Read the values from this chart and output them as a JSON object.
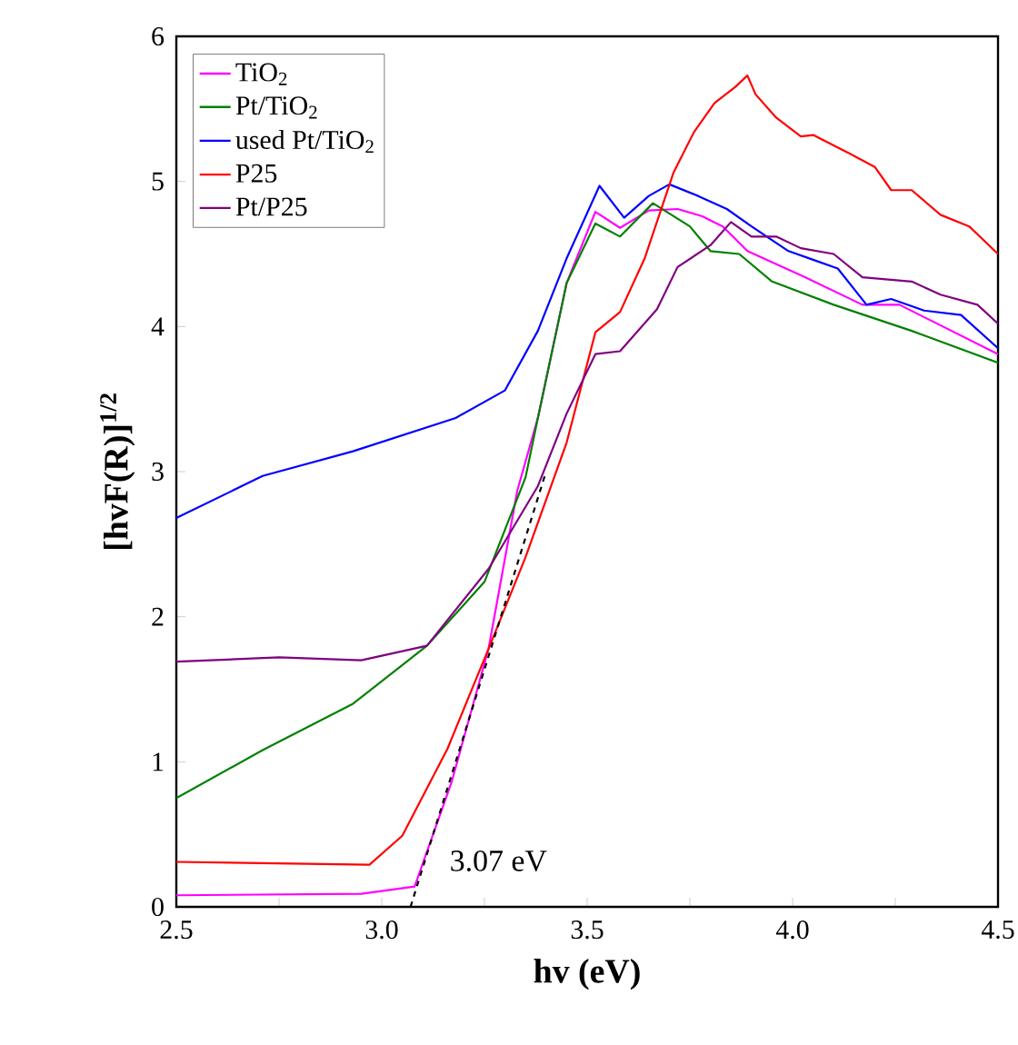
{
  "chart_data": {
    "type": "line",
    "xlabel": "hv (eV)",
    "ylabel": "[hvF(R)]$^{1/2}$",
    "xlim": [
      2.5,
      4.5
    ],
    "ylim": [
      0,
      6
    ],
    "xticks": [
      {
        "value": 2.5,
        "label": "2.5"
      },
      {
        "value": 2.75,
        "label": null
      },
      {
        "value": 3.0,
        "label": "3.0"
      },
      {
        "value": 3.25,
        "label": null
      },
      {
        "value": 3.5,
        "label": "3.5"
      },
      {
        "value": 3.75,
        "label": null
      },
      {
        "value": 4.0,
        "label": "4.0"
      },
      {
        "value": 4.25,
        "label": null
      },
      {
        "value": 4.5,
        "label": "4.5"
      }
    ],
    "yticks": [
      0,
      1,
      2,
      3,
      4,
      5,
      6
    ],
    "grid": false,
    "legend": "top left",
    "marker": "none",
    "annotations": [
      {
        "text": "3.07 eV",
        "x": 3.07,
        "y": 0
      }
    ],
    "series": [
      {
        "name": "TiO$_{2}$",
        "color": "#ff00ff",
        "x": [
          2.5,
          2.95,
          3.08,
          3.17,
          3.26,
          3.33,
          3.38,
          3.45,
          3.52,
          3.58,
          3.65,
          3.72,
          3.78,
          3.83,
          3.89,
          4.03,
          4.17,
          4.26,
          4.5
        ],
        "values": [
          0.08,
          0.09,
          0.14,
          0.86,
          1.78,
          2.87,
          3.37,
          4.3,
          4.79,
          4.68,
          4.8,
          4.81,
          4.76,
          4.69,
          4.52,
          4.34,
          4.15,
          4.15,
          3.81
        ]
      },
      {
        "name": "Pt/TiO$_{2}$",
        "color": "#008000",
        "x": [
          2.5,
          2.71,
          2.93,
          3.11,
          3.25,
          3.35,
          3.38,
          3.45,
          3.52,
          3.58,
          3.66,
          3.75,
          3.8,
          3.87,
          3.95,
          4.1,
          4.29,
          4.5
        ],
        "values": [
          0.75,
          1.08,
          1.4,
          1.8,
          2.24,
          2.96,
          3.37,
          4.3,
          4.71,
          4.62,
          4.85,
          4.69,
          4.52,
          4.5,
          4.31,
          4.15,
          3.97,
          3.75
        ]
      },
      {
        "name": "used Pt/TiO$_{2}$",
        "color": "#0000ff",
        "x": [
          2.5,
          2.71,
          2.93,
          3.18,
          3.3,
          3.38,
          3.45,
          3.53,
          3.59,
          3.65,
          3.7,
          3.77,
          3.84,
          3.9,
          3.99,
          4.05,
          4.11,
          4.18,
          4.24,
          4.32,
          4.41,
          4.5
        ],
        "values": [
          2.68,
          2.97,
          3.14,
          3.37,
          3.56,
          3.97,
          4.47,
          4.97,
          4.75,
          4.9,
          4.98,
          4.9,
          4.81,
          4.69,
          4.52,
          4.46,
          4.4,
          4.15,
          4.19,
          4.11,
          4.08,
          3.85
        ]
      },
      {
        "name": "P25",
        "color": "#ff0000",
        "x": [
          2.5,
          2.97,
          3.05,
          3.16,
          3.26,
          3.35,
          3.45,
          3.52,
          3.58,
          3.64,
          3.71,
          3.76,
          3.81,
          3.86,
          3.89,
          3.91,
          3.96,
          4.02,
          4.05,
          4.14,
          4.2,
          4.24,
          4.29,
          4.36,
          4.43,
          4.5
        ],
        "values": [
          0.31,
          0.29,
          0.49,
          1.09,
          1.78,
          2.41,
          3.2,
          3.96,
          4.1,
          4.47,
          5.06,
          5.34,
          5.54,
          5.65,
          5.73,
          5.6,
          5.44,
          5.31,
          5.32,
          5.19,
          5.1,
          4.94,
          4.94,
          4.77,
          4.69,
          4.5
        ]
      },
      {
        "name": "Pt/P25",
        "color": "#800080",
        "x": [
          2.5,
          2.75,
          2.95,
          3.11,
          3.26,
          3.38,
          3.45,
          3.52,
          3.58,
          3.67,
          3.72,
          3.8,
          3.85,
          3.9,
          3.96,
          4.02,
          4.1,
          4.17,
          4.29,
          4.36,
          4.45,
          4.5
        ],
        "values": [
          1.69,
          1.72,
          1.7,
          1.8,
          2.33,
          2.9,
          3.4,
          3.81,
          3.83,
          4.12,
          4.41,
          4.56,
          4.72,
          4.62,
          4.62,
          4.54,
          4.5,
          4.34,
          4.31,
          4.22,
          4.15,
          4.02
        ]
      },
      {
        "color": "#000000",
        "line_style": "dashed",
        "x": [
          3.07,
          3.4
        ],
        "values": [
          0,
          3.0
        ]
      }
    ]
  }
}
